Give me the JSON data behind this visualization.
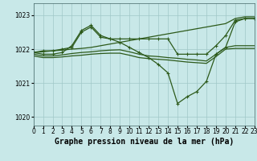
{
  "background_color": "#c8e8e8",
  "grid_color": "#a0c8c8",
  "line_color": "#2d5a1b",
  "xlabel": "Graphe pression niveau de la mer (hPa)",
  "xlim": [
    0,
    23
  ],
  "ylim": [
    1019.75,
    1023.35
  ],
  "yticks": [
    1020,
    1021,
    1022,
    1023
  ],
  "xticks": [
    0,
    1,
    2,
    3,
    4,
    5,
    6,
    7,
    8,
    9,
    10,
    11,
    12,
    13,
    14,
    15,
    16,
    17,
    18,
    19,
    20,
    21,
    22,
    23
  ],
  "series": [
    {
      "x": [
        0,
        1,
        2,
        3,
        4,
        5,
        6,
        7,
        8,
        9,
        10,
        11,
        12,
        13,
        14,
        15,
        16,
        17,
        18,
        19,
        20,
        21,
        22,
        23
      ],
      "y": [
        1021.9,
        1021.85,
        1021.85,
        1021.9,
        1022.1,
        1022.55,
        1022.7,
        1022.4,
        1022.3,
        1022.2,
        1022.05,
        1021.9,
        1021.75,
        1021.55,
        1021.3,
        1020.4,
        1020.6,
        1020.75,
        1021.05,
        1021.85,
        1022.05,
        1022.8,
        1022.9,
        1022.9
      ],
      "marker": true,
      "lw": 0.9
    },
    {
      "x": [
        0,
        1,
        2,
        3,
        4,
        5,
        6,
        7,
        8,
        9,
        10,
        11,
        12,
        13,
        14,
        15,
        16,
        17,
        18,
        19,
        20,
        21,
        22,
        23
      ],
      "y": [
        1021.9,
        1021.92,
        1021.95,
        1021.97,
        1022.0,
        1022.02,
        1022.05,
        1022.1,
        1022.15,
        1022.2,
        1022.25,
        1022.3,
        1022.35,
        1022.4,
        1022.45,
        1022.5,
        1022.55,
        1022.6,
        1022.65,
        1022.7,
        1022.75,
        1022.9,
        1022.95,
        1022.95
      ],
      "marker": false,
      "lw": 0.9
    },
    {
      "x": [
        0,
        1,
        2,
        3,
        4,
        5,
        6,
        7,
        8,
        9,
        10,
        11,
        12,
        13,
        14,
        15,
        16,
        17,
        18,
        19,
        20,
        21,
        22,
        23
      ],
      "y": [
        1021.9,
        1021.95,
        1021.95,
        1022.0,
        1022.05,
        1022.5,
        1022.65,
        1022.35,
        1022.3,
        1022.3,
        1022.3,
        1022.3,
        1022.3,
        1022.3,
        1022.3,
        1021.85,
        1021.85,
        1021.85,
        1021.85,
        1022.1,
        1022.4,
        1022.85,
        1022.9,
        1022.9
      ],
      "marker": true,
      "lw": 0.9
    },
    {
      "x": [
        0,
        1,
        2,
        3,
        4,
        5,
        6,
        7,
        8,
        9,
        10,
        11,
        12,
        13,
        14,
        15,
        16,
        17,
        18,
        19,
        20,
        21,
        22,
        23
      ],
      "y": [
        1021.85,
        1021.8,
        1021.8,
        1021.83,
        1021.87,
        1021.9,
        1021.92,
        1021.95,
        1021.97,
        1021.98,
        1021.92,
        1021.85,
        1021.8,
        1021.78,
        1021.75,
        1021.73,
        1021.7,
        1021.68,
        1021.65,
        1021.85,
        1022.05,
        1022.1,
        1022.1,
        1022.1
      ],
      "marker": false,
      "lw": 0.9
    },
    {
      "x": [
        0,
        1,
        2,
        3,
        4,
        5,
        6,
        7,
        8,
        9,
        10,
        11,
        12,
        13,
        14,
        15,
        16,
        17,
        18,
        19,
        20,
        21,
        22,
        23
      ],
      "y": [
        1021.8,
        1021.75,
        1021.75,
        1021.77,
        1021.8,
        1021.82,
        1021.85,
        1021.87,
        1021.88,
        1021.88,
        1021.82,
        1021.75,
        1021.72,
        1021.7,
        1021.68,
        1021.65,
        1021.62,
        1021.6,
        1021.58,
        1021.78,
        1022.0,
        1022.02,
        1022.02,
        1022.02
      ],
      "marker": false,
      "lw": 0.9
    }
  ],
  "marker_style": "+",
  "marker_size": 3.5,
  "marker_lw": 0.8,
  "xlabel_fontsize": 7,
  "tick_fontsize": 5.5
}
